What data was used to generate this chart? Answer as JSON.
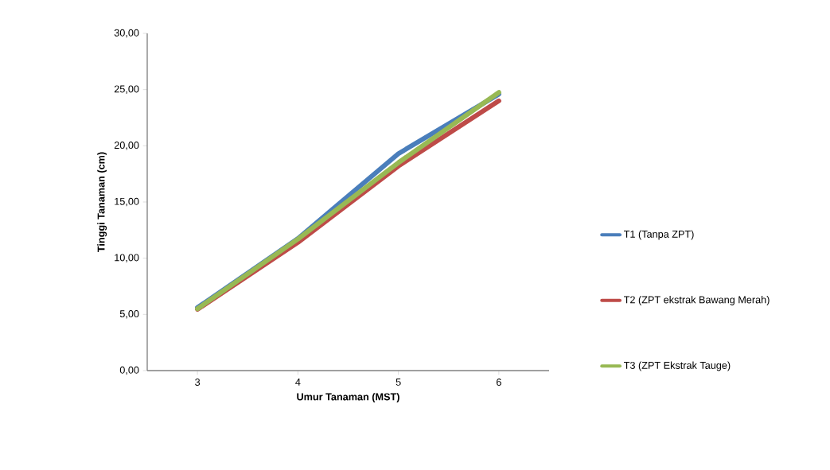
{
  "chart_data": {
    "type": "line",
    "xlabel": "Umur Tanaman (MST)",
    "ylabel": "Tinggi Tanaman (cm)",
    "categories": [
      "3",
      "4",
      "5",
      "6"
    ],
    "series": [
      {
        "name": "T1 (Tanpa ZPT)",
        "color": "#4a7ebb",
        "values": [
          5.6,
          11.75,
          19.3,
          24.6
        ]
      },
      {
        "name": "T2 (ZPT ekstrak Bawang Merah)",
        "color": "#be4b48",
        "values": [
          5.45,
          11.4,
          18.2,
          24.0
        ]
      },
      {
        "name": "T3 (ZPT Ekstrak Tauge)",
        "color": "#98b954",
        "values": [
          5.5,
          11.7,
          18.5,
          24.75
        ]
      }
    ],
    "ylim": [
      0,
      30
    ],
    "yticks": [
      {
        "value": 0,
        "label": "0,00"
      },
      {
        "value": 5,
        "label": "5,00"
      },
      {
        "value": 10,
        "label": "10,00"
      },
      {
        "value": 15,
        "label": "15,00"
      },
      {
        "value": 20,
        "label": "20,00"
      },
      {
        "value": 25,
        "label": "25,00"
      },
      {
        "value": 30,
        "label": "30,00"
      }
    ],
    "grid": false,
    "legend": "right",
    "marker": "none",
    "line_style": "solid"
  }
}
